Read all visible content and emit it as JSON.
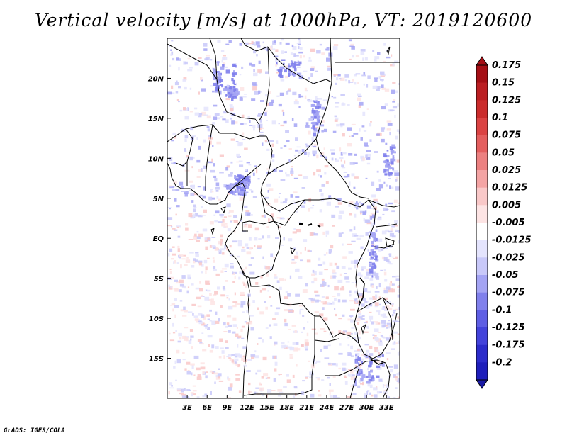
{
  "title": "Vertical velocity [m/s] at 1000hPa, VT: 2019120600",
  "credit": "GrADS: IGES/COLA",
  "map": {
    "lon_range": [
      0,
      35
    ],
    "lat_range": [
      -20,
      25
    ],
    "lat_ticks": [
      {
        "value": 20,
        "label": "20N"
      },
      {
        "value": 15,
        "label": "15N"
      },
      {
        "value": 10,
        "label": "10N"
      },
      {
        "value": 5,
        "label": "5N"
      },
      {
        "value": 0,
        "label": "EQ"
      },
      {
        "value": -5,
        "label": "5S"
      },
      {
        "value": -10,
        "label": "10S"
      },
      {
        "value": -15,
        "label": "15S"
      }
    ],
    "lon_ticks": [
      {
        "value": 3,
        "label": "3E"
      },
      {
        "value": 6,
        "label": "6E"
      },
      {
        "value": 9,
        "label": "9E"
      },
      {
        "value": 12,
        "label": "12E"
      },
      {
        "value": 15,
        "label": "15E"
      },
      {
        "value": 18,
        "label": "18E"
      },
      {
        "value": 21,
        "label": "21E"
      },
      {
        "value": 24,
        "label": "24E"
      },
      {
        "value": 27,
        "label": "27E"
      },
      {
        "value": 30,
        "label": "30E"
      },
      {
        "value": 33,
        "label": "33E"
      }
    ]
  },
  "colorbar": {
    "levels": [
      {
        "label": "0.175",
        "color": "#a50f15"
      },
      {
        "label": "0.15",
        "color": "#bb1e22"
      },
      {
        "label": "0.125",
        "color": "#cb2c2c"
      },
      {
        "label": "0.1",
        "color": "#db4343"
      },
      {
        "label": "0.075",
        "color": "#e45e5e"
      },
      {
        "label": "0.05",
        "color": "#ec8080"
      },
      {
        "label": "0.025",
        "color": "#f4a4a4"
      },
      {
        "label": "0.0125",
        "color": "#f9c8c8"
      },
      {
        "label": "0.005",
        "color": "#fde4e4"
      },
      {
        "label": "-0.005",
        "color": "#ffffff"
      },
      {
        "label": "-0.0125",
        "color": "#e4e4fd"
      },
      {
        "label": "-0.025",
        "color": "#c8c8f9"
      },
      {
        "label": "-0.05",
        "color": "#a4a4f4"
      },
      {
        "label": "-0.075",
        "color": "#8080ec"
      },
      {
        "label": "-0.1",
        "color": "#5e5ee4"
      },
      {
        "label": "-0.125",
        "color": "#4343db"
      },
      {
        "label": "-0.175",
        "color": "#2c2ccb"
      },
      {
        "label": "-0.2",
        "color": "#1e1ebb"
      }
    ],
    "top_arrow_color": "#a50f15",
    "bottom_arrow_color": "#1a1aa5"
  },
  "colors": {
    "ascent": "#8080ec",
    "descent": "#f4a4a4",
    "border": "#000000"
  }
}
